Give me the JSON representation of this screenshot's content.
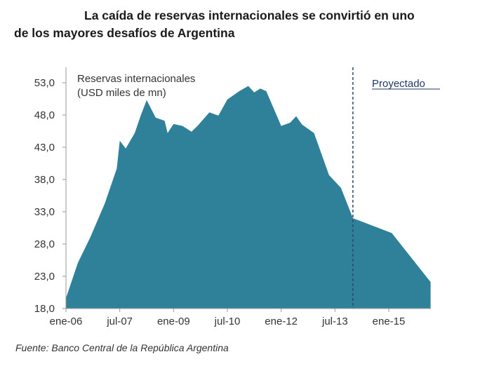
{
  "title": {
    "line1": "La caída de reservas internacionales se convirtió en uno",
    "line2": "de los mayores desafíos de Argentina"
  },
  "source": "Fuente: Banco Central de la República Argentina",
  "colors": {
    "area_fill": "#2E8199",
    "axis": "#999999",
    "projection_line": "#2a4a6a",
    "projection_label": "#1f3a66"
  },
  "chart_data": {
    "type": "area",
    "title": "La caída de reservas internacionales se convirtió en uno de los mayores desafíos de Argentina",
    "series_label_line1": "Reservas internacionales",
    "series_label_line2": "(USD miles de mn)",
    "projection_label": "Proyectado",
    "projection_start": "oct-13",
    "xlabel": "",
    "ylabel": "Reservas internacionales (USD miles de mn)",
    "ylim": [
      18.0,
      53.0
    ],
    "y_ticks": [
      "53,0",
      "48,0",
      "43,0",
      "38,0",
      "33,0",
      "28,0",
      "23,0",
      "18,0"
    ],
    "x_ticks": [
      "ene-06",
      "jul-07",
      "ene-09",
      "jul-10",
      "ene-12",
      "jul-13",
      "ene-15"
    ],
    "grid": false,
    "legend": "none",
    "series": [
      {
        "name": "Reservas internacionales",
        "points": [
          {
            "month": 0,
            "value": 19.6
          },
          {
            "month": 4,
            "value": 25.1
          },
          {
            "month": 8,
            "value": 28.9
          },
          {
            "month": 13,
            "value": 34.3
          },
          {
            "month": 17,
            "value": 39.7
          },
          {
            "month": 18,
            "value": 44.0
          },
          {
            "month": 20,
            "value": 42.8
          },
          {
            "month": 23,
            "value": 45.2
          },
          {
            "month": 25,
            "value": 47.9
          },
          {
            "month": 27,
            "value": 50.3
          },
          {
            "month": 30,
            "value": 47.6
          },
          {
            "month": 33,
            "value": 47.1
          },
          {
            "month": 34,
            "value": 45.2
          },
          {
            "month": 36,
            "value": 46.6
          },
          {
            "month": 39,
            "value": 46.3
          },
          {
            "month": 42,
            "value": 45.4
          },
          {
            "month": 44,
            "value": 46.3
          },
          {
            "month": 48,
            "value": 48.4
          },
          {
            "month": 51,
            "value": 47.9
          },
          {
            "month": 54,
            "value": 50.4
          },
          {
            "month": 58,
            "value": 51.7
          },
          {
            "month": 61,
            "value": 52.5
          },
          {
            "month": 63,
            "value": 51.5
          },
          {
            "month": 65,
            "value": 52.1
          },
          {
            "month": 67,
            "value": 51.7
          },
          {
            "month": 72,
            "value": 46.3
          },
          {
            "month": 75,
            "value": 46.8
          },
          {
            "month": 77,
            "value": 47.8
          },
          {
            "month": 79,
            "value": 46.5
          },
          {
            "month": 83,
            "value": 45.2
          },
          {
            "month": 88,
            "value": 38.7
          },
          {
            "month": 92,
            "value": 36.7
          },
          {
            "month": 96,
            "value": 32.0
          }
        ]
      },
      {
        "name": "Proyectado",
        "points": [
          {
            "month": 96,
            "value": 32.0
          },
          {
            "month": 109,
            "value": 29.7
          },
          {
            "month": 122,
            "value": 22.1
          }
        ]
      }
    ]
  }
}
